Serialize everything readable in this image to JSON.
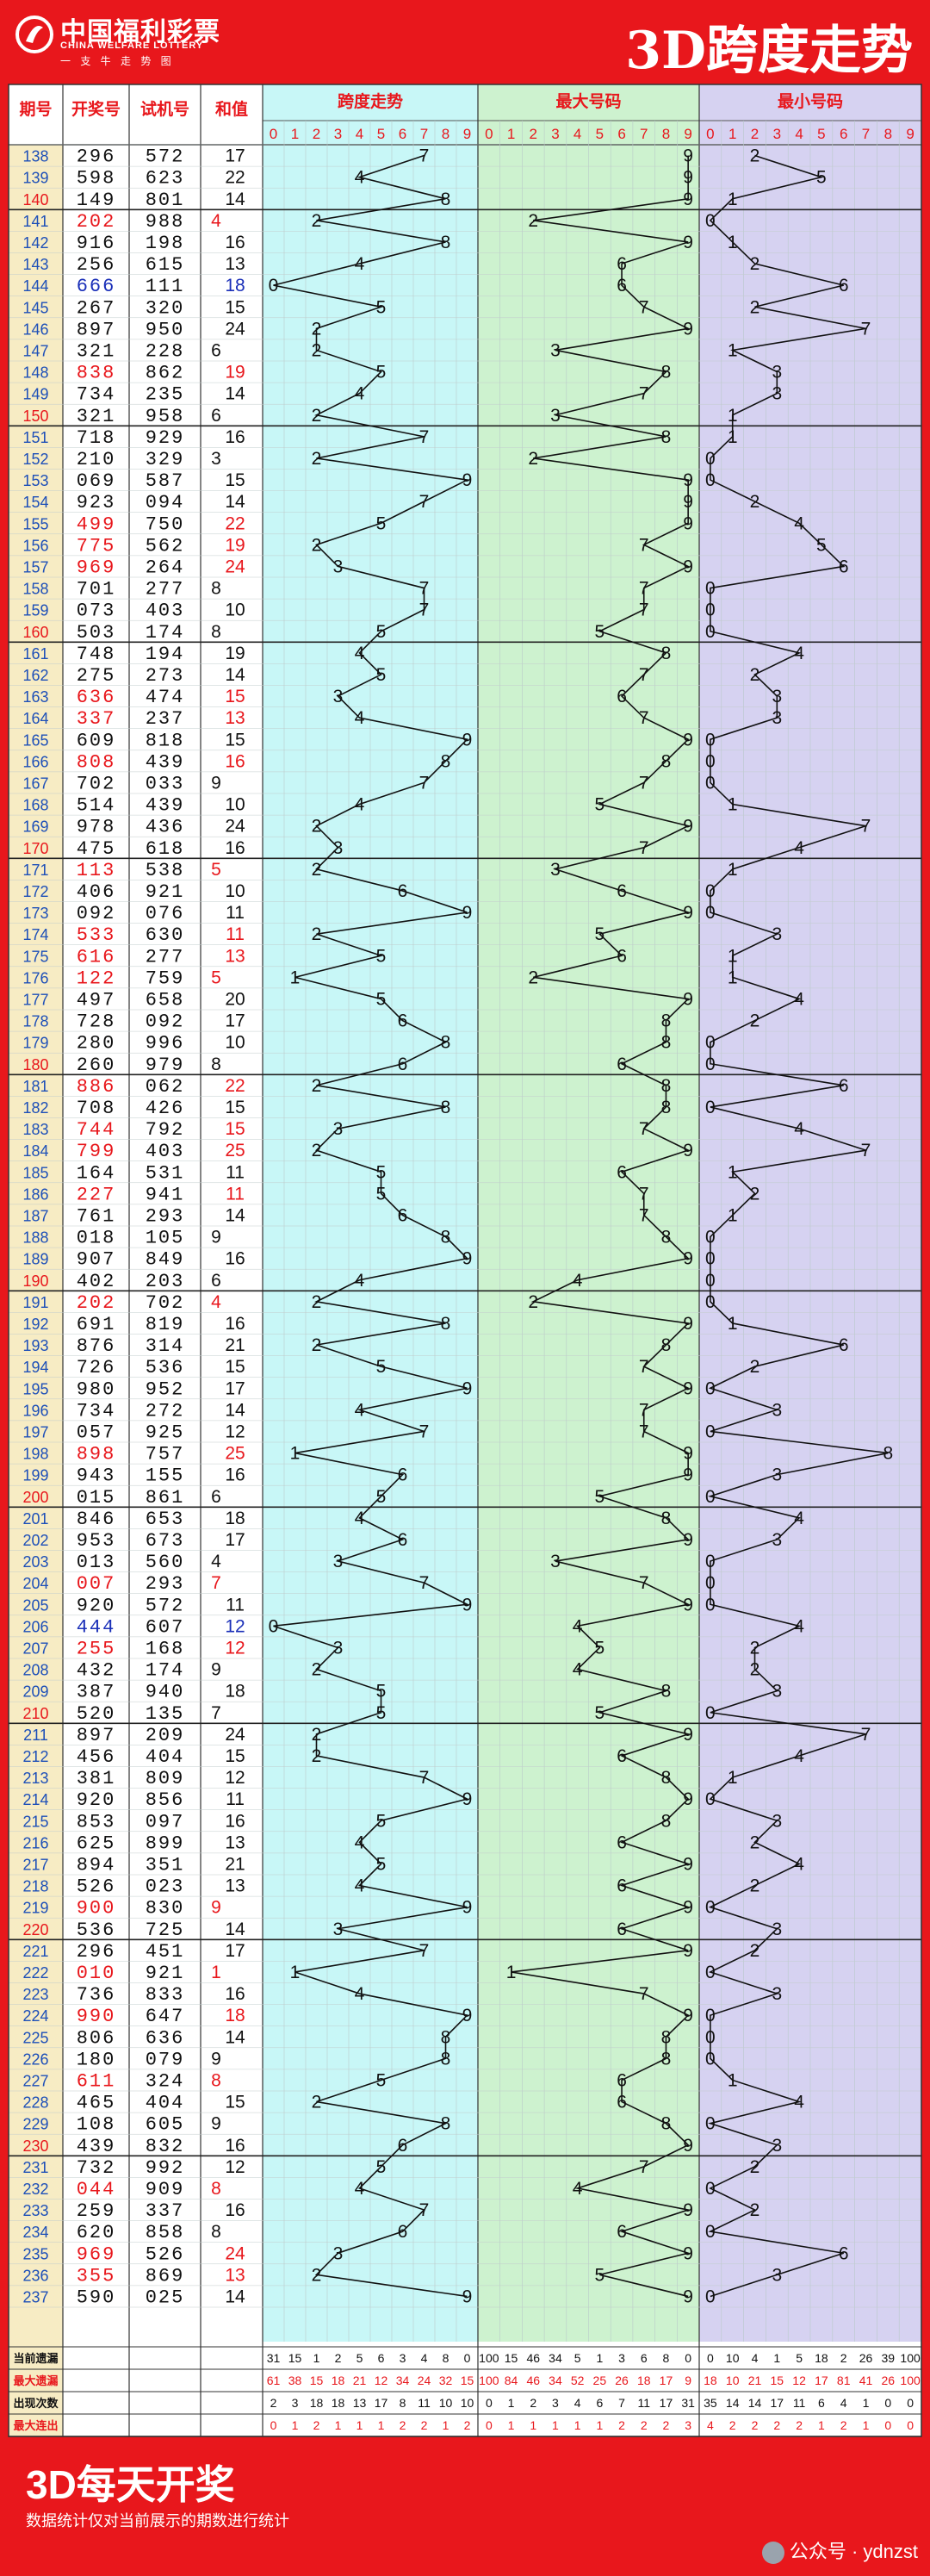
{
  "header": {
    "logo_cn": "中国福利彩票",
    "logo_en": "CHINA WELFARE LOTTERY",
    "logo_sub": "一 支 牛 走 势 图",
    "title": "3D跨度走势"
  },
  "columns": {
    "issue": "期号",
    "draw": "开奖号",
    "trial": "试机号",
    "sum": "和值",
    "span_section": "跨度走势",
    "max_section": "最大号码",
    "min_section": "最小号码",
    "digits": [
      "0",
      "1",
      "2",
      "3",
      "4",
      "5",
      "6",
      "7",
      "8",
      "9"
    ]
  },
  "stats": {
    "labels": [
      "当前遗漏",
      "最大遗漏",
      "出现次数",
      "最大连出"
    ],
    "rows": [
      [
        31,
        15,
        1,
        2,
        5,
        6,
        3,
        4,
        8,
        0,
        100,
        15,
        46,
        34,
        5,
        1,
        3,
        6,
        8,
        0,
        0,
        10,
        4,
        1,
        5,
        18,
        2,
        26,
        39,
        100
      ],
      [
        61,
        38,
        15,
        18,
        21,
        12,
        34,
        24,
        32,
        15,
        100,
        84,
        46,
        34,
        52,
        25,
        26,
        18,
        17,
        9,
        18,
        10,
        21,
        15,
        12,
        17,
        81,
        41,
        26,
        100
      ],
      [
        2,
        3,
        18,
        18,
        13,
        17,
        8,
        11,
        10,
        10,
        0,
        1,
        2,
        3,
        4,
        6,
        7,
        11,
        17,
        31,
        35,
        14,
        14,
        17,
        11,
        6,
        4,
        1,
        0,
        0
      ],
      [
        0,
        1,
        2,
        1,
        1,
        1,
        2,
        2,
        1,
        2,
        0,
        1,
        1,
        1,
        1,
        1,
        2,
        2,
        2,
        3,
        4,
        2,
        2,
        2,
        2,
        1,
        2,
        1,
        0,
        0
      ]
    ]
  },
  "footer": {
    "title": "3D每天开奖",
    "note": "数据统计仅对当前展示的期数进行统计",
    "watermark": "公众号 · ydnzst"
  },
  "colors": {
    "frame": "#e8171c",
    "span_bg": "#c8f7f7",
    "max_bg": "#cdf2cf",
    "min_bg": "#d6d2f1",
    "red_number": "#e8171c",
    "blue_number": "#1a2fb8"
  },
  "chart_data": {
    "type": "table",
    "series": [
      {
        "name": "跨度走势",
        "key": "span"
      },
      {
        "name": "最大号码",
        "key": "max"
      },
      {
        "name": "最小号码",
        "key": "min"
      }
    ],
    "rows": [
      {
        "issue": "138",
        "draw": "296",
        "trial": "572",
        "sum": 17,
        "span": 7,
        "max": 9,
        "min": 2
      },
      {
        "issue": "139",
        "draw": "598",
        "trial": "623",
        "sum": 22,
        "span": 4,
        "max": 9,
        "min": 5
      },
      {
        "issue": "140",
        "draw": "149",
        "trial": "801",
        "sum": 14,
        "span": 8,
        "max": 9,
        "min": 1
      },
      {
        "issue": "141",
        "draw": "202",
        "trial": "988",
        "sum": 4,
        "span": 2,
        "max": 2,
        "min": 0
      },
      {
        "issue": "142",
        "draw": "916",
        "trial": "198",
        "sum": 16,
        "span": 8,
        "max": 9,
        "min": 1
      },
      {
        "issue": "143",
        "draw": "256",
        "trial": "615",
        "sum": 13,
        "span": 4,
        "max": 6,
        "min": 2
      },
      {
        "issue": "144",
        "draw": "666",
        "trial": "111",
        "sum": 18,
        "span": 0,
        "max": 6,
        "min": 6
      },
      {
        "issue": "145",
        "draw": "267",
        "trial": "320",
        "sum": 15,
        "span": 5,
        "max": 7,
        "min": 2
      },
      {
        "issue": "146",
        "draw": "897",
        "trial": "950",
        "sum": 24,
        "span": 2,
        "max": 9,
        "min": 7
      },
      {
        "issue": "147",
        "draw": "321",
        "trial": "228",
        "sum": 6,
        "span": 2,
        "max": 3,
        "min": 1
      },
      {
        "issue": "148",
        "draw": "838",
        "trial": "862",
        "sum": 19,
        "span": 5,
        "max": 8,
        "min": 3
      },
      {
        "issue": "149",
        "draw": "734",
        "trial": "235",
        "sum": 14,
        "span": 4,
        "max": 7,
        "min": 3
      },
      {
        "issue": "150",
        "draw": "321",
        "trial": "958",
        "sum": 6,
        "span": 2,
        "max": 3,
        "min": 1
      },
      {
        "issue": "151",
        "draw": "718",
        "trial": "929",
        "sum": 16,
        "span": 7,
        "max": 8,
        "min": 1
      },
      {
        "issue": "152",
        "draw": "210",
        "trial": "329",
        "sum": 3,
        "span": 2,
        "max": 2,
        "min": 0
      },
      {
        "issue": "153",
        "draw": "069",
        "trial": "587",
        "sum": 15,
        "span": 9,
        "max": 9,
        "min": 0
      },
      {
        "issue": "154",
        "draw": "923",
        "trial": "094",
        "sum": 14,
        "span": 7,
        "max": 9,
        "min": 2
      },
      {
        "issue": "155",
        "draw": "499",
        "trial": "750",
        "sum": 22,
        "span": 5,
        "max": 9,
        "min": 4
      },
      {
        "issue": "156",
        "draw": "775",
        "trial": "562",
        "sum": 19,
        "span": 2,
        "max": 7,
        "min": 5
      },
      {
        "issue": "157",
        "draw": "969",
        "trial": "264",
        "sum": 24,
        "span": 3,
        "max": 9,
        "min": 6
      },
      {
        "issue": "158",
        "draw": "701",
        "trial": "277",
        "sum": 8,
        "span": 7,
        "max": 7,
        "min": 0
      },
      {
        "issue": "159",
        "draw": "073",
        "trial": "403",
        "sum": 10,
        "span": 7,
        "max": 7,
        "min": 0
      },
      {
        "issue": "160",
        "draw": "503",
        "trial": "174",
        "sum": 8,
        "span": 5,
        "max": 5,
        "min": 0
      },
      {
        "issue": "161",
        "draw": "748",
        "trial": "194",
        "sum": 19,
        "span": 4,
        "max": 8,
        "min": 4
      },
      {
        "issue": "162",
        "draw": "275",
        "trial": "273",
        "sum": 14,
        "span": 5,
        "max": 7,
        "min": 2
      },
      {
        "issue": "163",
        "draw": "636",
        "trial": "474",
        "sum": 15,
        "span": 3,
        "max": 6,
        "min": 3
      },
      {
        "issue": "164",
        "draw": "337",
        "trial": "237",
        "sum": 13,
        "span": 4,
        "max": 7,
        "min": 3
      },
      {
        "issue": "165",
        "draw": "609",
        "trial": "818",
        "sum": 15,
        "span": 9,
        "max": 9,
        "min": 0
      },
      {
        "issue": "166",
        "draw": "808",
        "trial": "439",
        "sum": 16,
        "span": 8,
        "max": 8,
        "min": 0
      },
      {
        "issue": "167",
        "draw": "702",
        "trial": "033",
        "sum": 9,
        "span": 7,
        "max": 7,
        "min": 0
      },
      {
        "issue": "168",
        "draw": "514",
        "trial": "439",
        "sum": 10,
        "span": 4,
        "max": 5,
        "min": 1
      },
      {
        "issue": "169",
        "draw": "978",
        "trial": "436",
        "sum": 24,
        "span": 2,
        "max": 9,
        "min": 7
      },
      {
        "issue": "170",
        "draw": "475",
        "trial": "618",
        "sum": 16,
        "span": 3,
        "max": 7,
        "min": 4
      },
      {
        "issue": "171",
        "draw": "113",
        "trial": "538",
        "sum": 5,
        "span": 2,
        "max": 3,
        "min": 1
      },
      {
        "issue": "172",
        "draw": "406",
        "trial": "921",
        "sum": 10,
        "span": 6,
        "max": 6,
        "min": 0
      },
      {
        "issue": "173",
        "draw": "092",
        "trial": "076",
        "sum": 11,
        "span": 9,
        "max": 9,
        "min": 0
      },
      {
        "issue": "174",
        "draw": "533",
        "trial": "630",
        "sum": 11,
        "span": 2,
        "max": 5,
        "min": 3
      },
      {
        "issue": "175",
        "draw": "616",
        "trial": "277",
        "sum": 13,
        "span": 5,
        "max": 6,
        "min": 1
      },
      {
        "issue": "176",
        "draw": "122",
        "trial": "759",
        "sum": 5,
        "span": 1,
        "max": 2,
        "min": 1
      },
      {
        "issue": "177",
        "draw": "497",
        "trial": "658",
        "sum": 20,
        "span": 5,
        "max": 9,
        "min": 4
      },
      {
        "issue": "178",
        "draw": "728",
        "trial": "092",
        "sum": 17,
        "span": 6,
        "max": 8,
        "min": 2
      },
      {
        "issue": "179",
        "draw": "280",
        "trial": "996",
        "sum": 10,
        "span": 8,
        "max": 8,
        "min": 0
      },
      {
        "issue": "180",
        "draw": "260",
        "trial": "979",
        "sum": 8,
        "span": 6,
        "max": 6,
        "min": 0
      },
      {
        "issue": "181",
        "draw": "886",
        "trial": "062",
        "sum": 22,
        "span": 2,
        "max": 8,
        "min": 6
      },
      {
        "issue": "182",
        "draw": "708",
        "trial": "426",
        "sum": 15,
        "span": 8,
        "max": 8,
        "min": 0
      },
      {
        "issue": "183",
        "draw": "744",
        "trial": "792",
        "sum": 15,
        "span": 3,
        "max": 7,
        "min": 4
      },
      {
        "issue": "184",
        "draw": "799",
        "trial": "403",
        "sum": 25,
        "span": 2,
        "max": 9,
        "min": 7
      },
      {
        "issue": "185",
        "draw": "164",
        "trial": "531",
        "sum": 11,
        "span": 5,
        "max": 6,
        "min": 1
      },
      {
        "issue": "186",
        "draw": "227",
        "trial": "941",
        "sum": 11,
        "span": 5,
        "max": 7,
        "min": 2
      },
      {
        "issue": "187",
        "draw": "761",
        "trial": "293",
        "sum": 14,
        "span": 6,
        "max": 7,
        "min": 1
      },
      {
        "issue": "188",
        "draw": "018",
        "trial": "105",
        "sum": 9,
        "span": 8,
        "max": 8,
        "min": 0
      },
      {
        "issue": "189",
        "draw": "907",
        "trial": "849",
        "sum": 16,
        "span": 9,
        "max": 9,
        "min": 0
      },
      {
        "issue": "190",
        "draw": "402",
        "trial": "203",
        "sum": 6,
        "span": 4,
        "max": 4,
        "min": 0
      },
      {
        "issue": "191",
        "draw": "202",
        "trial": "702",
        "sum": 4,
        "span": 2,
        "max": 2,
        "min": 0
      },
      {
        "issue": "192",
        "draw": "691",
        "trial": "819",
        "sum": 16,
        "span": 8,
        "max": 9,
        "min": 1
      },
      {
        "issue": "193",
        "draw": "876",
        "trial": "314",
        "sum": 21,
        "span": 2,
        "max": 8,
        "min": 6
      },
      {
        "issue": "194",
        "draw": "726",
        "trial": "536",
        "sum": 15,
        "span": 5,
        "max": 7,
        "min": 2
      },
      {
        "issue": "195",
        "draw": "980",
        "trial": "952",
        "sum": 17,
        "span": 9,
        "max": 9,
        "min": 0
      },
      {
        "issue": "196",
        "draw": "734",
        "trial": "272",
        "sum": 14,
        "span": 4,
        "max": 7,
        "min": 3
      },
      {
        "issue": "197",
        "draw": "057",
        "trial": "925",
        "sum": 12,
        "span": 7,
        "max": 7,
        "min": 0
      },
      {
        "issue": "198",
        "draw": "898",
        "trial": "757",
        "sum": 25,
        "span": 1,
        "max": 9,
        "min": 8
      },
      {
        "issue": "199",
        "draw": "943",
        "trial": "155",
        "sum": 16,
        "span": 6,
        "max": 9,
        "min": 3
      },
      {
        "issue": "200",
        "draw": "015",
        "trial": "861",
        "sum": 6,
        "span": 5,
        "max": 5,
        "min": 0
      },
      {
        "issue": "201",
        "draw": "846",
        "trial": "653",
        "sum": 18,
        "span": 4,
        "max": 8,
        "min": 4
      },
      {
        "issue": "202",
        "draw": "953",
        "trial": "673",
        "sum": 17,
        "span": 6,
        "max": 9,
        "min": 3
      },
      {
        "issue": "203",
        "draw": "013",
        "trial": "560",
        "sum": 4,
        "span": 3,
        "max": 3,
        "min": 0
      },
      {
        "issue": "204",
        "draw": "007",
        "trial": "293",
        "sum": 7,
        "span": 7,
        "max": 7,
        "min": 0
      },
      {
        "issue": "205",
        "draw": "920",
        "trial": "572",
        "sum": 11,
        "span": 9,
        "max": 9,
        "min": 0
      },
      {
        "issue": "206",
        "draw": "444",
        "trial": "607",
        "sum": 12,
        "span": 0,
        "max": 4,
        "min": 4
      },
      {
        "issue": "207",
        "draw": "255",
        "trial": "168",
        "sum": 12,
        "span": 3,
        "max": 5,
        "min": 2
      },
      {
        "issue": "208",
        "draw": "432",
        "trial": "174",
        "sum": 9,
        "span": 2,
        "max": 4,
        "min": 2
      },
      {
        "issue": "209",
        "draw": "387",
        "trial": "940",
        "sum": 18,
        "span": 5,
        "max": 8,
        "min": 3
      },
      {
        "issue": "210",
        "draw": "520",
        "trial": "135",
        "sum": 7,
        "span": 5,
        "max": 5,
        "min": 0
      },
      {
        "issue": "211",
        "draw": "897",
        "trial": "209",
        "sum": 24,
        "span": 2,
        "max": 9,
        "min": 7
      },
      {
        "issue": "212",
        "draw": "456",
        "trial": "404",
        "sum": 15,
        "span": 2,
        "max": 6,
        "min": 4
      },
      {
        "issue": "213",
        "draw": "381",
        "trial": "809",
        "sum": 12,
        "span": 7,
        "max": 8,
        "min": 1
      },
      {
        "issue": "214",
        "draw": "920",
        "trial": "856",
        "sum": 11,
        "span": 9,
        "max": 9,
        "min": 0
      },
      {
        "issue": "215",
        "draw": "853",
        "trial": "097",
        "sum": 16,
        "span": 5,
        "max": 8,
        "min": 3
      },
      {
        "issue": "216",
        "draw": "625",
        "trial": "899",
        "sum": 13,
        "span": 4,
        "max": 6,
        "min": 2
      },
      {
        "issue": "217",
        "draw": "894",
        "trial": "351",
        "sum": 21,
        "span": 5,
        "max": 9,
        "min": 4
      },
      {
        "issue": "218",
        "draw": "526",
        "trial": "023",
        "sum": 13,
        "span": 4,
        "max": 6,
        "min": 2
      },
      {
        "issue": "219",
        "draw": "900",
        "trial": "830",
        "sum": 9,
        "span": 9,
        "max": 9,
        "min": 0
      },
      {
        "issue": "220",
        "draw": "536",
        "trial": "725",
        "sum": 14,
        "span": 3,
        "max": 6,
        "min": 3
      },
      {
        "issue": "221",
        "draw": "296",
        "trial": "451",
        "sum": 17,
        "span": 7,
        "max": 9,
        "min": 2
      },
      {
        "issue": "222",
        "draw": "010",
        "trial": "921",
        "sum": 1,
        "span": 1,
        "max": 1,
        "min": 0
      },
      {
        "issue": "223",
        "draw": "736",
        "trial": "833",
        "sum": 16,
        "span": 4,
        "max": 7,
        "min": 3
      },
      {
        "issue": "224",
        "draw": "990",
        "trial": "647",
        "sum": 18,
        "span": 9,
        "max": 9,
        "min": 0
      },
      {
        "issue": "225",
        "draw": "806",
        "trial": "636",
        "sum": 14,
        "span": 8,
        "max": 8,
        "min": 0
      },
      {
        "issue": "226",
        "draw": "180",
        "trial": "079",
        "sum": 9,
        "span": 8,
        "max": 8,
        "min": 0
      },
      {
        "issue": "227",
        "draw": "611",
        "trial": "324",
        "sum": 8,
        "span": 5,
        "max": 6,
        "min": 1
      },
      {
        "issue": "228",
        "draw": "465",
        "trial": "404",
        "sum": 15,
        "span": 2,
        "max": 6,
        "min": 4
      },
      {
        "issue": "229",
        "draw": "108",
        "trial": "605",
        "sum": 9,
        "span": 8,
        "max": 8,
        "min": 0
      },
      {
        "issue": "230",
        "draw": "439",
        "trial": "832",
        "sum": 16,
        "span": 6,
        "max": 9,
        "min": 3
      },
      {
        "issue": "231",
        "draw": "732",
        "trial": "992",
        "sum": 12,
        "span": 5,
        "max": 7,
        "min": 2
      },
      {
        "issue": "232",
        "draw": "044",
        "trial": "909",
        "sum": 8,
        "span": 4,
        "max": 4,
        "min": 0
      },
      {
        "issue": "233",
        "draw": "259",
        "trial": "337",
        "sum": 16,
        "span": 7,
        "max": 9,
        "min": 2
      },
      {
        "issue": "234",
        "draw": "620",
        "trial": "858",
        "sum": 8,
        "span": 6,
        "max": 6,
        "min": 0
      },
      {
        "issue": "235",
        "draw": "969",
        "trial": "526",
        "sum": 24,
        "span": 3,
        "max": 9,
        "min": 6
      },
      {
        "issue": "236",
        "draw": "355",
        "trial": "869",
        "sum": 13,
        "span": 2,
        "max": 5,
        "min": 3
      },
      {
        "issue": "237",
        "draw": "590",
        "trial": "025",
        "sum": 14,
        "span": 9,
        "max": 9,
        "min": 0
      }
    ]
  }
}
